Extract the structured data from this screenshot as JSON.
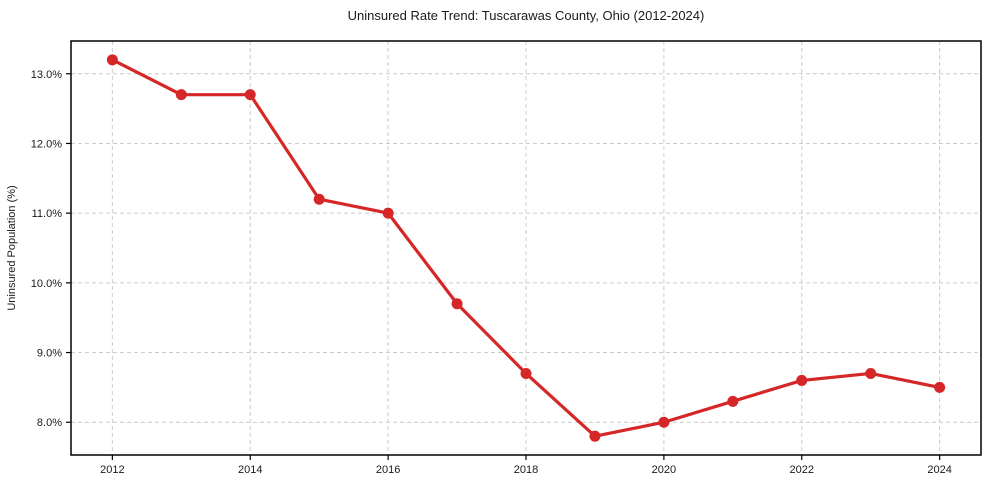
{
  "chart_data": {
    "type": "line",
    "title": "Uninsured Rate Trend: Tuscarawas County, Ohio (2012-2024)",
    "xlabel": "",
    "ylabel": "Uninsured Population (%)",
    "x": [
      2012,
      2013,
      2014,
      2015,
      2016,
      2017,
      2018,
      2019,
      2020,
      2021,
      2022,
      2023,
      2024
    ],
    "values": [
      13.2,
      12.7,
      12.7,
      11.2,
      11.0,
      9.7,
      8.7,
      7.8,
      8.0,
      8.3,
      8.6,
      8.7,
      8.5
    ],
    "xlim": [
      2011.4,
      2024.6
    ],
    "ylim": [
      7.53,
      13.47
    ],
    "xticks": [
      2012,
      2014,
      2016,
      2018,
      2020,
      2022,
      2024
    ],
    "xtick_labels": [
      "2012",
      "2014",
      "2016",
      "2018",
      "2020",
      "2022",
      "2024"
    ],
    "yticks": [
      8,
      9,
      10,
      11,
      12,
      13
    ],
    "ytick_labels": [
      "8.0%",
      "9.0%",
      "10.0%",
      "11.0%",
      "12.0%",
      "13.0%"
    ],
    "grid": "dashed",
    "legend": "none",
    "colors": {
      "line": "#d62728",
      "marker": "#d62728",
      "grid": "#cccccc",
      "axis_border": "#000000",
      "text": "#1a1a1a",
      "background": "#ffffff"
    }
  }
}
